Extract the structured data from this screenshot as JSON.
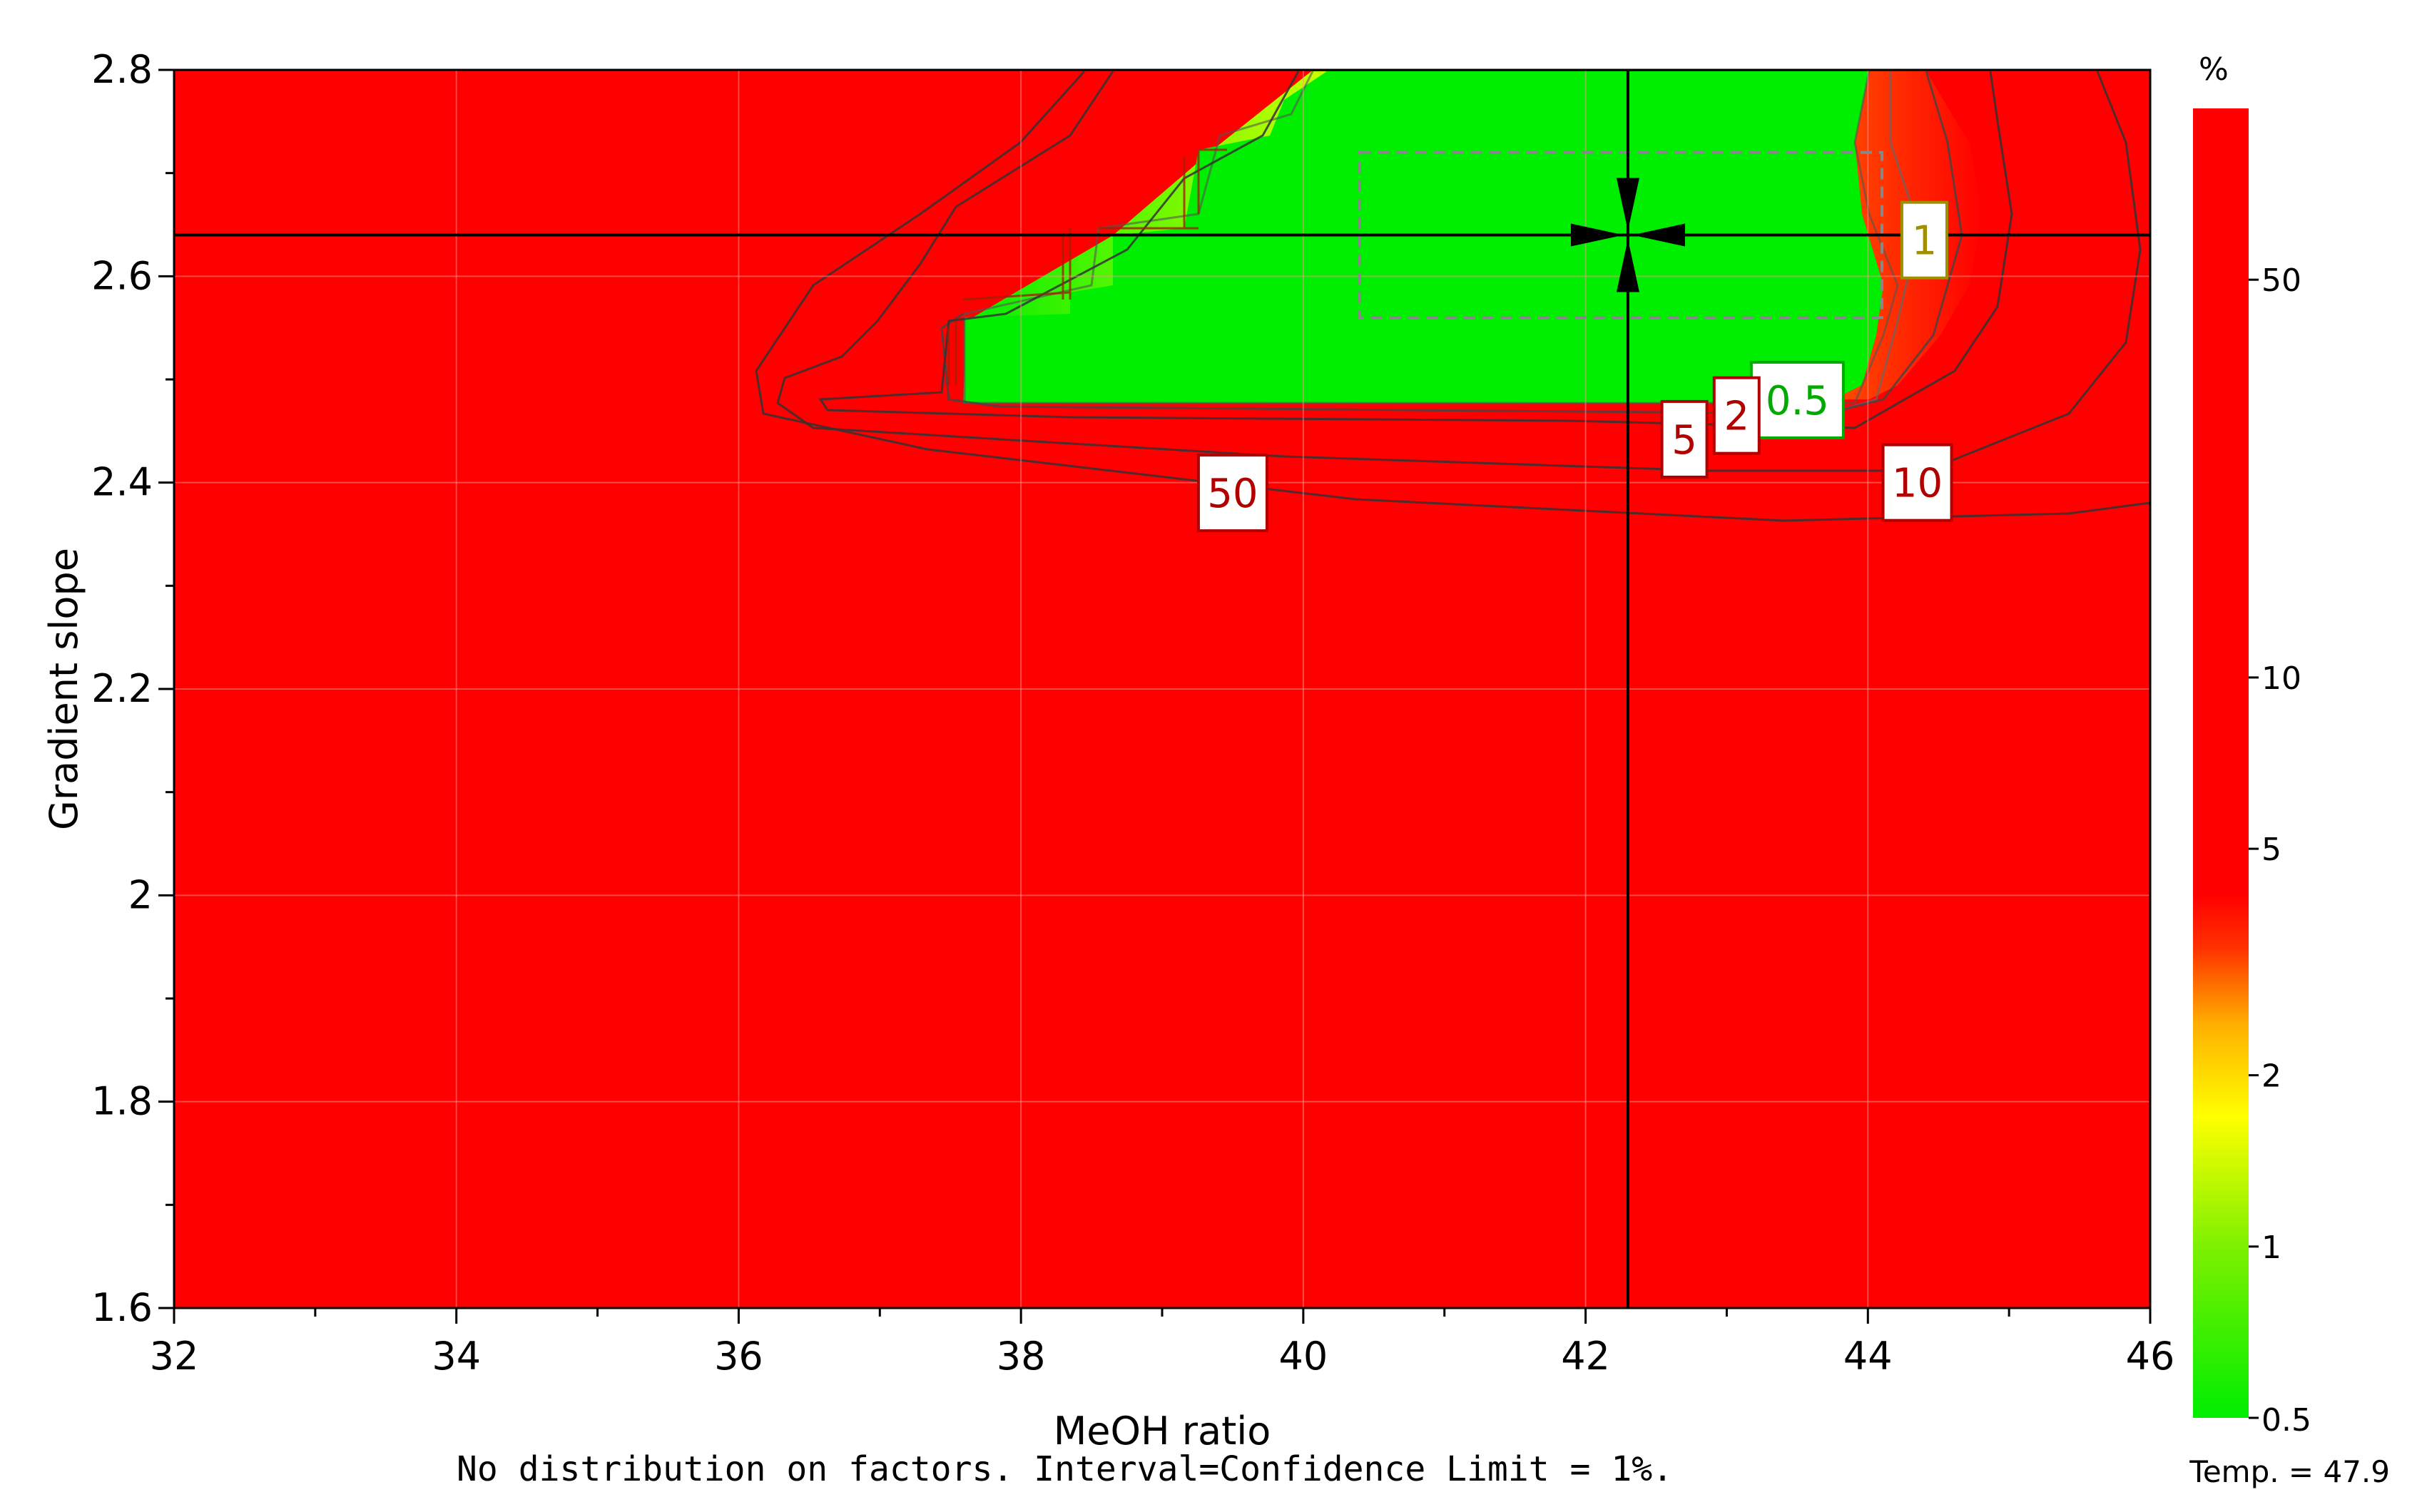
{
  "chart_data": {
    "type": "heatmap",
    "subtype": "contour",
    "title": "",
    "xlabel": "MeOH ratio",
    "ylabel": "Gradient slope",
    "xlim": [
      32,
      46
    ],
    "ylim": [
      1.6,
      2.8
    ],
    "x_ticks": [
      "32",
      "34",
      "36",
      "38",
      "40",
      "42",
      "44",
      "46"
    ],
    "y_ticks": [
      "1.6",
      "1.8",
      "2",
      "2.2",
      "2.4",
      "2.6",
      "2.8"
    ],
    "grid": true,
    "crosshair": {
      "x": 42.3,
      "y": 2.64
    },
    "design_space_box": {
      "x": [
        40.4,
        44.1
      ],
      "y": [
        2.56,
        2.72
      ]
    },
    "colorbar": {
      "unit": "%",
      "scale": "log",
      "range": [
        0.5,
        100
      ],
      "tick_labels": [
        "50",
        "10",
        "5",
        "2",
        "1",
        "0.5"
      ],
      "tick_values": [
        50,
        10,
        5,
        2,
        1,
        0.5
      ],
      "colors": [
        "#00ee00",
        "#ffff00",
        "#ff9900",
        "#ff0000"
      ]
    },
    "contour_labels": [
      {
        "text": "1",
        "x": 44.4,
        "y": 2.635,
        "color": "#a09000"
      },
      {
        "text": "0.5",
        "x": 43.5,
        "y": 2.48,
        "color": "#00aa00"
      },
      {
        "text": "2",
        "x": 43.07,
        "y": 2.465,
        "color": "#b00000"
      },
      {
        "text": "5",
        "x": 42.7,
        "y": 2.442,
        "color": "#b00000"
      },
      {
        "text": "10",
        "x": 44.35,
        "y": 2.4,
        "color": "#b00000"
      },
      {
        "text": "50",
        "x": 39.5,
        "y": 2.39,
        "color": "#b00000"
      }
    ],
    "footer": "No distribution on factors. Interval=Confidence Limit = 1%.",
    "temp_label": "Temp. = 47.9"
  }
}
